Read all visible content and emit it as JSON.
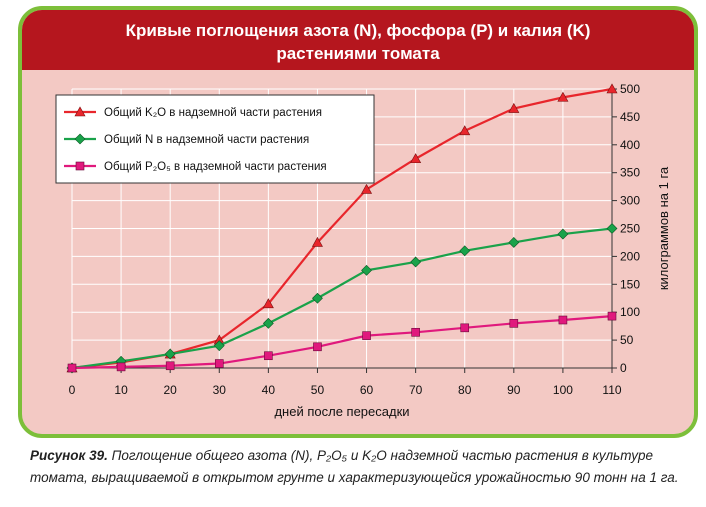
{
  "title": {
    "line1": "Кривые поглощения азота (N), фосфора (P) и калия (K)",
    "line2": "растениями томата"
  },
  "colors": {
    "frame_border": "#7dbf3a",
    "title_band": "#b5161e",
    "chart_bg": "#f3c9c4"
  },
  "chart_data": {
    "type": "line",
    "x": [
      0,
      10,
      20,
      30,
      40,
      50,
      60,
      70,
      80,
      90,
      100,
      110
    ],
    "xlabel": "дней после пересадки",
    "ylabel": "килограммов на 1 га",
    "xlim": [
      0,
      110
    ],
    "ylim": [
      0,
      500
    ],
    "y_ticks": [
      0,
      50,
      100,
      150,
      200,
      250,
      300,
      350,
      400,
      450,
      500
    ],
    "y_axis_side": "right",
    "grid": true,
    "legend_position": "top-left",
    "series": [
      {
        "name": "Общий K₂O в надземной части растения",
        "marker": "triangle",
        "color": "#e8262c",
        "values": [
          0,
          10,
          25,
          50,
          115,
          225,
          320,
          375,
          425,
          465,
          485,
          500
        ]
      },
      {
        "name": "Общий N в надземной части растения",
        "marker": "diamond",
        "color": "#1aa24a",
        "values": [
          0,
          12,
          25,
          40,
          80,
          125,
          175,
          190,
          210,
          225,
          240,
          250
        ]
      },
      {
        "name": "Общий P₂O₅ в надземной части растения",
        "marker": "square",
        "color": "#e0197d",
        "values": [
          0,
          2,
          4,
          8,
          22,
          38,
          58,
          64,
          72,
          80,
          86,
          93
        ]
      }
    ]
  },
  "caption": {
    "label": "Рисунок 39.",
    "text_line1": " Поглощение общего азота (N), P₂O₅ и K₂O надземной частью растения в культуре",
    "text_line2": "томата, выращиваемой в открытом грунте и характеризующейся урожайностью 90 тонн на 1 га."
  }
}
